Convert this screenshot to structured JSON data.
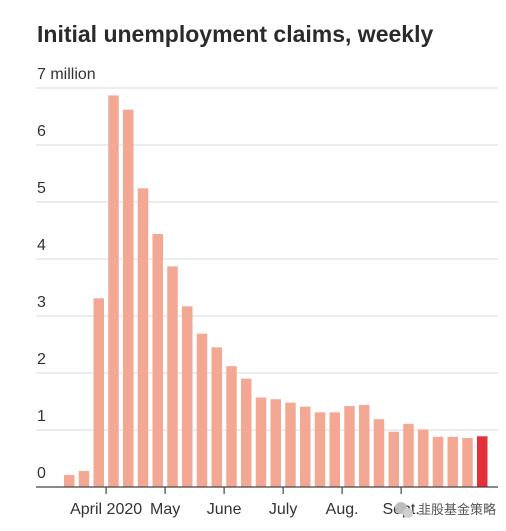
{
  "chart_data": {
    "type": "bar",
    "title": "Initial unemployment claims, weekly",
    "ylabel": "",
    "xlabel": "",
    "unit": "million",
    "ylim": [
      0,
      7
    ],
    "y_ticks": [
      {
        "value": 0,
        "label": "0"
      },
      {
        "value": 1,
        "label": "1"
      },
      {
        "value": 2,
        "label": "2"
      },
      {
        "value": 3,
        "label": "3"
      },
      {
        "value": 4,
        "label": "4"
      },
      {
        "value": 5,
        "label": "5"
      },
      {
        "value": 6,
        "label": "6"
      },
      {
        "value": 7,
        "label": "7 million"
      }
    ],
    "x_ticks": [
      {
        "index": 3,
        "label": "April 2020"
      },
      {
        "index": 7,
        "label": "May"
      },
      {
        "index": 11,
        "label": "June"
      },
      {
        "index": 15,
        "label": "July"
      },
      {
        "index": 19,
        "label": "Aug."
      },
      {
        "index": 23,
        "label": "Sept."
      }
    ],
    "grid": true,
    "bar_color": "#f2a893",
    "highlight_color": "#e3303b",
    "highlight_index": 28,
    "values": [
      0.21,
      0.28,
      3.31,
      6.87,
      6.62,
      5.24,
      4.44,
      3.87,
      3.17,
      2.69,
      2.45,
      2.12,
      1.9,
      1.57,
      1.54,
      1.48,
      1.41,
      1.31,
      1.31,
      1.42,
      1.44,
      1.19,
      0.97,
      1.11,
      1.01,
      0.88,
      0.88,
      0.86,
      0.89
    ]
  },
  "watermark": {
    "text": "韭股基金策略",
    "icon": "wechat-icon"
  }
}
